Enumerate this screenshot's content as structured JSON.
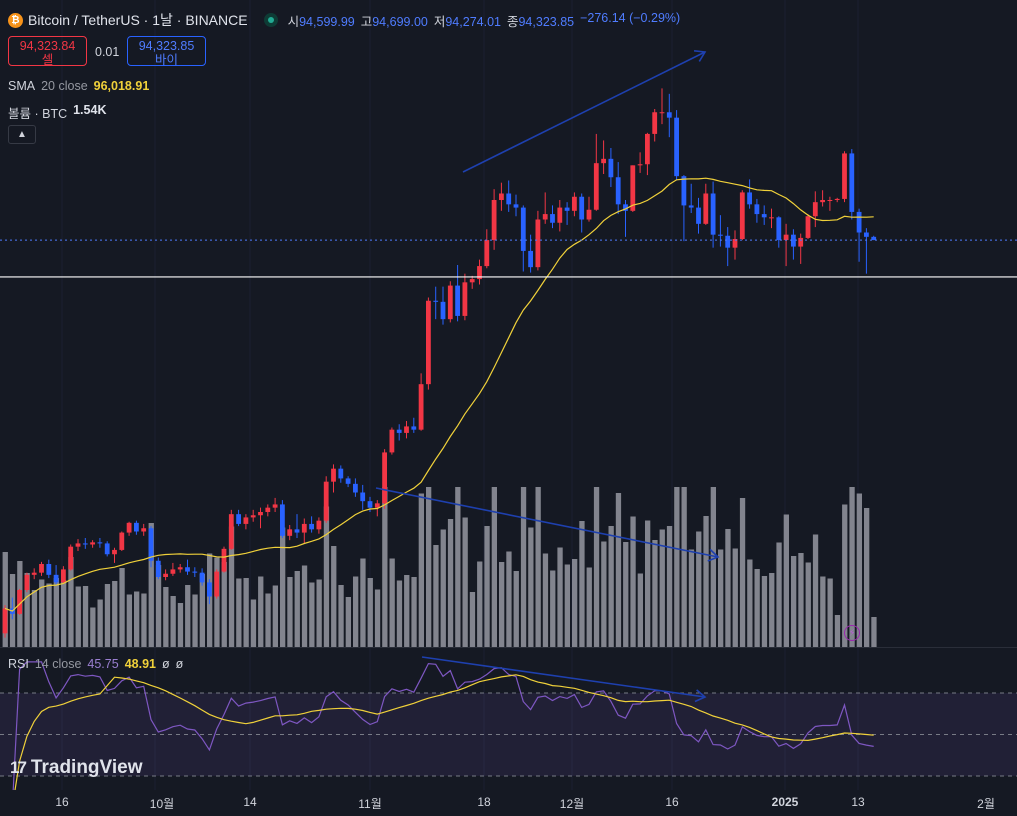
{
  "header": {
    "symbol_icon": "bitcoin-icon",
    "title": "Bitcoin / TetherUS · 1날 · BINANCE",
    "ohlc": {
      "open_label": "시",
      "open": "94,599.99",
      "high_label": "고",
      "high": "94,699.00",
      "low_label": "저",
      "low": "94,274.01",
      "close_label": "종",
      "close": "94,323.85",
      "change": "−276.14 (−0.29%)"
    }
  },
  "trade": {
    "sell_price": "94,323.84",
    "sell_label": "셀",
    "spread": "0.01",
    "buy_price": "94,323.85",
    "buy_label": "바이"
  },
  "indicators": {
    "sma_name": "SMA",
    "sma_params": "20 close",
    "sma_value": "96,018.91",
    "volume_name": "볼륨 · BTC",
    "volume_value": "1.54K",
    "rsi_name": "RSI",
    "rsi_params": "14 close",
    "rsi_value": "45.75",
    "rsi_ma_value": "48.91",
    "rsi_extra1": "ø",
    "rsi_extra2": "ø"
  },
  "x_axis": [
    {
      "label": "16",
      "bold": false
    },
    {
      "label": "10월",
      "bold": false
    },
    {
      "label": "14",
      "bold": false
    },
    {
      "label": "11월",
      "bold": false
    },
    {
      "label": "18",
      "bold": false
    },
    {
      "label": "12월",
      "bold": false
    },
    {
      "label": "16",
      "bold": false
    },
    {
      "label": "2025",
      "bold": true
    },
    {
      "label": "13",
      "bold": false
    },
    {
      "label": "2월",
      "bold": false
    }
  ],
  "branding": {
    "logo_text": "TradingView"
  },
  "colors": {
    "background": "#151923",
    "up": "#f23645",
    "down": "#2962ff",
    "sma": "#f0d13a",
    "volume": "#9598a1",
    "rsi": "#7e57c2",
    "rsi_ma": "#f0d13a",
    "annotation": "#1e40af"
  },
  "chart_data": {
    "type": "candlestick",
    "price_range": [
      74000,
      110000
    ],
    "candles": [
      [
        58000,
        60600,
        57600,
        60300
      ],
      [
        60300,
        61300,
        59300,
        59800
      ],
      [
        59800,
        62100,
        59700,
        62000
      ],
      [
        62000,
        63600,
        61800,
        63400
      ],
      [
        63400,
        64000,
        63000,
        63600
      ],
      [
        63600,
        64600,
        63300,
        64400
      ],
      [
        64400,
        64800,
        63100,
        63400
      ],
      [
        63400,
        64300,
        62500,
        62700
      ],
      [
        62700,
        64200,
        62600,
        63900
      ],
      [
        63900,
        66200,
        63800,
        66000
      ],
      [
        66000,
        66700,
        65600,
        66300
      ],
      [
        66300,
        66800,
        65800,
        66200
      ],
      [
        66200,
        66600,
        65900,
        66400
      ],
      [
        66400,
        66800,
        65900,
        66300
      ],
      [
        66300,
        66500,
        65100,
        65300
      ],
      [
        65300,
        65900,
        64500,
        65700
      ],
      [
        65700,
        67400,
        65600,
        67300
      ],
      [
        67300,
        68300,
        67000,
        68200
      ],
      [
        68200,
        68400,
        67100,
        67400
      ],
      [
        67400,
        68100,
        67000,
        67700
      ],
      [
        67700,
        67900,
        64100,
        64700
      ],
      [
        64700,
        65000,
        63000,
        63200
      ],
      [
        63200,
        63900,
        62900,
        63500
      ],
      [
        63500,
        64500,
        63300,
        63900
      ],
      [
        63900,
        64400,
        63600,
        64100
      ],
      [
        64100,
        64800,
        63400,
        63700
      ],
      [
        63700,
        64100,
        63200,
        63600
      ],
      [
        63600,
        64000,
        62400,
        62700
      ],
      [
        62700,
        63000,
        60700,
        61400
      ],
      [
        61400,
        63900,
        61200,
        63700
      ],
      [
        63700,
        66000,
        63600,
        65800
      ],
      [
        65800,
        69400,
        65700,
        69000
      ],
      [
        69000,
        69400,
        67900,
        68100
      ],
      [
        68100,
        69000,
        67600,
        68700
      ],
      [
        68700,
        69400,
        68300,
        68900
      ],
      [
        68900,
        69600,
        67700,
        69200
      ],
      [
        69200,
        69900,
        68800,
        69600
      ],
      [
        69600,
        70500,
        69200,
        69900
      ],
      [
        69900,
        70300,
        66800,
        67000
      ],
      [
        67000,
        68000,
        66600,
        67600
      ],
      [
        67600,
        69000,
        66800,
        67300
      ],
      [
        67300,
        68600,
        66300,
        68100
      ],
      [
        68100,
        68800,
        67300,
        67600
      ],
      [
        67600,
        68700,
        67200,
        68400
      ],
      [
        68400,
        72500,
        68200,
        72000
      ],
      [
        72000,
        73600,
        71000,
        73200
      ],
      [
        73200,
        73500,
        71900,
        72300
      ],
      [
        72300,
        72500,
        71500,
        71800
      ],
      [
        71800,
        72300,
        70600,
        71000
      ],
      [
        71000,
        71700,
        69400,
        70200
      ],
      [
        70200,
        70600,
        69200,
        69600
      ],
      [
        69600,
        70300,
        68800,
        70000
      ],
      [
        70000,
        75000,
        69500,
        74700
      ],
      [
        74700,
        77000,
        74500,
        76800
      ],
      [
        76800,
        77300,
        75800,
        76500
      ],
      [
        76500,
        77600,
        76000,
        77100
      ],
      [
        77100,
        77900,
        76500,
        76800
      ],
      [
        76800,
        82000,
        76700,
        81000
      ],
      [
        81000,
        89000,
        80500,
        88700
      ],
      [
        88700,
        90000,
        87000,
        88600
      ],
      [
        88600,
        90000,
        86500,
        87000
      ],
      [
        87000,
        90500,
        86700,
        90100
      ],
      [
        90100,
        92000,
        86800,
        87300
      ],
      [
        87300,
        91200,
        86900,
        90400
      ],
      [
        90400,
        91000,
        89800,
        90700
      ],
      [
        90700,
        92500,
        90200,
        91900
      ],
      [
        91900,
        95300,
        91700,
        94300
      ],
      [
        94300,
        99000,
        93400,
        98000
      ],
      [
        98000,
        99600,
        97000,
        98600
      ],
      [
        98600,
        99800,
        96900,
        97600
      ],
      [
        97600,
        98500,
        96500,
        97300
      ],
      [
        97300,
        97500,
        91400,
        93300
      ],
      [
        93300,
        94800,
        91300,
        91800
      ],
      [
        91800,
        97000,
        91500,
        96200
      ],
      [
        96200,
        98700,
        95800,
        96700
      ],
      [
        96700,
        97500,
        95400,
        95900
      ],
      [
        95900,
        98000,
        95100,
        97300
      ],
      [
        97300,
        97800,
        95700,
        97000
      ],
      [
        97000,
        98700,
        96500,
        98300
      ],
      [
        98300,
        98600,
        95000,
        96200
      ],
      [
        96200,
        98300,
        96000,
        97100
      ],
      [
        97100,
        104100,
        97000,
        101400
      ],
      [
        101400,
        103500,
        100400,
        101800
      ],
      [
        101800,
        102800,
        99200,
        100100
      ],
      [
        100100,
        101500,
        96700,
        97600
      ],
      [
        97600,
        98000,
        94600,
        97000
      ],
      [
        97000,
        101200,
        96900,
        101200
      ],
      [
        101200,
        102400,
        100500,
        101300
      ],
      [
        101300,
        104200,
        100300,
        104100
      ],
      [
        104100,
        106400,
        103400,
        106100
      ],
      [
        106100,
        108300,
        105000,
        106100
      ],
      [
        106100,
        107800,
        103800,
        105600
      ],
      [
        105600,
        106300,
        99800,
        100200
      ],
      [
        100200,
        100300,
        94200,
        97500
      ],
      [
        97500,
        99500,
        96800,
        97300
      ],
      [
        97300,
        98200,
        94900,
        95800
      ],
      [
        95800,
        99500,
        95700,
        98600
      ],
      [
        98600,
        99700,
        93600,
        94800
      ],
      [
        94800,
        96600,
        93700,
        94700
      ],
      [
        94700,
        95500,
        91900,
        93600
      ],
      [
        93600,
        95200,
        92500,
        94400
      ],
      [
        94400,
        98900,
        94300,
        98700
      ],
      [
        98700,
        99900,
        97200,
        97600
      ],
      [
        97600,
        98100,
        95900,
        96700
      ],
      [
        96700,
        97500,
        95700,
        96400
      ],
      [
        96400,
        97200,
        95400,
        96400
      ],
      [
        96400,
        96500,
        93600,
        94300
      ],
      [
        94300,
        95800,
        91900,
        94800
      ],
      [
        94800,
        95300,
        92500,
        93700
      ],
      [
        93700,
        94900,
        92100,
        94500
      ],
      [
        94500,
        96700,
        94400,
        96500
      ],
      [
        96500,
        98800,
        95500,
        97800
      ],
      [
        97800,
        98900,
        97400,
        98000
      ],
      [
        98000,
        98300,
        97000,
        98000
      ],
      [
        98000,
        98200,
        97800,
        98100
      ],
      [
        98100,
        102500,
        97800,
        102300
      ],
      [
        102300,
        102700,
        96200,
        96900
      ],
      [
        96900,
        97200,
        92300,
        95000
      ],
      [
        95000,
        95400,
        91200,
        94600
      ],
      [
        94600,
        94700,
        94300,
        94300
      ]
    ],
    "sma20_close": "line as drawn by the chart",
    "rsi_range": [
      0,
      100
    ],
    "rsi_levels": [
      70,
      50,
      30
    ],
    "volume_unit": "BTC",
    "annotations": [
      {
        "name": "price-uptrend-arrow",
        "type": "arrow"
      },
      {
        "name": "volume-downtrend-arrow",
        "type": "arrow"
      },
      {
        "name": "rsi-divergence-arrow",
        "type": "arrow"
      },
      {
        "name": "support-horizontal-line",
        "type": "hline",
        "price": 90900
      }
    ]
  }
}
